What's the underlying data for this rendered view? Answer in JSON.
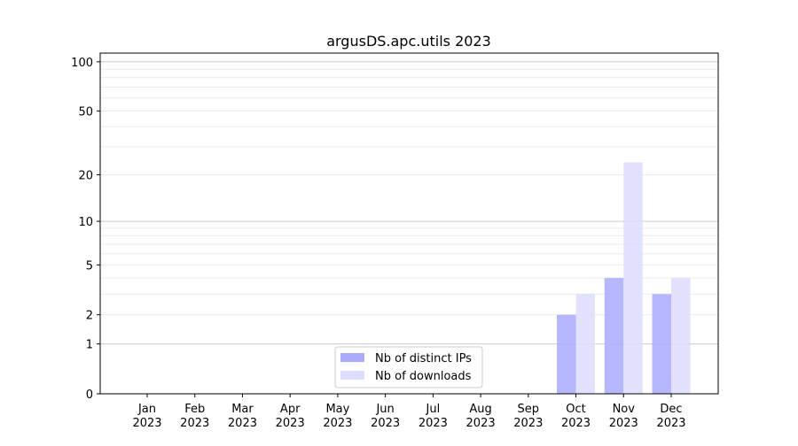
{
  "chart_data": {
    "type": "bar",
    "title": "argusDS.apc.utils 2023",
    "xlabel": "",
    "ylabel": "",
    "yscale": "log10(1+y)",
    "ylim": [
      0,
      113
    ],
    "yticks": [
      0,
      1,
      2,
      5,
      10,
      20,
      50,
      100
    ],
    "grid": true,
    "legend_position": "lower-center",
    "categories": [
      "Jan\n2023",
      "Feb\n2023",
      "Mar\n2023",
      "Apr\n2023",
      "May\n2023",
      "Jun\n2023",
      "Jul\n2023",
      "Aug\n2023",
      "Sep\n2023",
      "Oct\n2023",
      "Nov\n2023",
      "Dec\n2023"
    ],
    "series": [
      {
        "name": "Nb of distinct IPs",
        "color": "#aaaaff",
        "values": [
          0,
          0,
          0,
          0,
          0,
          0,
          0,
          0,
          0,
          2,
          4,
          3
        ]
      },
      {
        "name": "Nb of downloads",
        "color": "#ddddff",
        "values": [
          0,
          0,
          0,
          0,
          0,
          0,
          0,
          0,
          0,
          3,
          24,
          4
        ]
      }
    ]
  }
}
